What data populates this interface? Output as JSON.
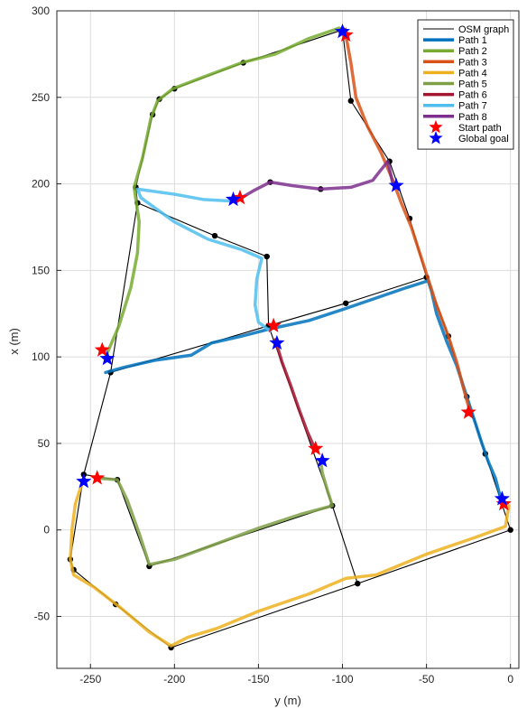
{
  "chart_data": {
    "type": "line",
    "xlabel": "y (m)",
    "ylabel": "x (m)",
    "xlim": [
      -270,
      5
    ],
    "ylim": [
      -80,
      300
    ],
    "xticks": [
      -250,
      -200,
      -150,
      -100,
      -50,
      0
    ],
    "yticks": [
      -50,
      0,
      50,
      100,
      150,
      200,
      250,
      300
    ],
    "grid": true,
    "legend_position": "top-right",
    "osm_graph": {
      "name": "OSM graph",
      "color": "#000000",
      "nodes": [
        [
          -100,
          289
        ],
        [
          -159,
          270
        ],
        [
          -200,
          255
        ],
        [
          -209,
          249
        ],
        [
          -213,
          240
        ],
        [
          -223,
          198
        ],
        [
          -222,
          189
        ],
        [
          -176,
          170
        ],
        [
          -145,
          158
        ],
        [
          -144,
          118
        ],
        [
          -143,
          201
        ],
        [
          -113,
          197
        ],
        [
          -95,
          248
        ],
        [
          -72,
          213
        ],
        [
          -60,
          180
        ],
        [
          -50,
          146
        ],
        [
          -37,
          112
        ],
        [
          -26,
          77
        ],
        [
          -15,
          44
        ],
        [
          0,
          0
        ],
        [
          -98,
          131
        ],
        [
          -238,
          91
        ],
        [
          -254,
          32
        ],
        [
          -234,
          29
        ],
        [
          -215,
          -21
        ],
        [
          -106,
          14
        ],
        [
          -91,
          -31
        ],
        [
          -262,
          -17
        ],
        [
          -260,
          -23
        ],
        [
          -235,
          -43
        ],
        [
          -202,
          -68
        ]
      ],
      "edges": [
        [
          0,
          1
        ],
        [
          1,
          2
        ],
        [
          2,
          3
        ],
        [
          3,
          4
        ],
        [
          4,
          5
        ],
        [
          5,
          6
        ],
        [
          6,
          7
        ],
        [
          7,
          8
        ],
        [
          8,
          9
        ],
        [
          0,
          12
        ],
        [
          12,
          13
        ],
        [
          13,
          14
        ],
        [
          14,
          15
        ],
        [
          15,
          16
        ],
        [
          16,
          17
        ],
        [
          17,
          18
        ],
        [
          18,
          19
        ],
        [
          6,
          21
        ],
        [
          21,
          22
        ],
        [
          22,
          23
        ],
        [
          23,
          24
        ],
        [
          24,
          25
        ],
        [
          25,
          9
        ],
        [
          9,
          20
        ],
        [
          20,
          15
        ],
        [
          21,
          9
        ],
        [
          19,
          26
        ],
        [
          26,
          25
        ],
        [
          26,
          30
        ],
        [
          30,
          29
        ],
        [
          29,
          28
        ],
        [
          28,
          27
        ],
        [
          27,
          22
        ]
      ]
    },
    "series": [
      {
        "name": "Path 1",
        "color": "#0072BD",
        "points": [
          [
            -241,
            91
          ],
          [
            -230,
            94
          ],
          [
            -212,
            98
          ],
          [
            -190,
            101
          ],
          [
            -178,
            108
          ],
          [
            -160,
            112
          ],
          [
            -144,
            116
          ],
          [
            -120,
            121
          ],
          [
            -98,
            128
          ],
          [
            -80,
            134
          ],
          [
            -62,
            140
          ],
          [
            -49,
            144
          ],
          [
            -47,
            138
          ],
          [
            -44,
            125
          ],
          [
            -38,
            109
          ],
          [
            -32,
            95
          ],
          [
            -27,
            80
          ],
          [
            -22,
            65
          ],
          [
            -17,
            50
          ],
          [
            -13,
            39
          ],
          [
            -9,
            30
          ],
          [
            -6,
            19
          ]
        ]
      },
      {
        "name": "Path 2",
        "color": "#77AC30",
        "points": [
          [
            -241,
            100
          ],
          [
            -233,
            118
          ],
          [
            -226,
            140
          ],
          [
            -222,
            160
          ],
          [
            -221,
            178
          ],
          [
            -224,
            198
          ],
          [
            -219,
            215
          ],
          [
            -214,
            238
          ],
          [
            -210,
            248
          ],
          [
            -201,
            255
          ],
          [
            -182,
            262
          ],
          [
            -160,
            270
          ],
          [
            -140,
            275
          ],
          [
            -120,
            284
          ],
          [
            -102,
            290
          ]
        ]
      },
      {
        "name": "Path 3",
        "color": "#D95319",
        "points": [
          [
            -98,
            286
          ],
          [
            -95,
            270
          ],
          [
            -92,
            250
          ],
          [
            -85,
            233
          ],
          [
            -77,
            218
          ],
          [
            -70,
            202
          ],
          [
            -65,
            189
          ],
          [
            -59,
            175
          ],
          [
            -54,
            160
          ],
          [
            -49,
            145
          ],
          [
            -44,
            130
          ],
          [
            -37,
            112
          ],
          [
            -32,
            97
          ],
          [
            -28,
            82
          ],
          [
            -24,
            68
          ]
        ]
      },
      {
        "name": "Path 4",
        "color": "#EDB120",
        "points": [
          [
            -1,
            14
          ],
          [
            -3,
            2
          ],
          [
            -20,
            -4
          ],
          [
            -50,
            -14
          ],
          [
            -80,
            -26
          ],
          [
            -98,
            -28
          ],
          [
            -120,
            -37
          ],
          [
            -150,
            -47
          ],
          [
            -175,
            -57
          ],
          [
            -192,
            -62
          ],
          [
            -202,
            -67
          ],
          [
            -215,
            -59
          ],
          [
            -232,
            -45
          ],
          [
            -248,
            -33
          ],
          [
            -260,
            -26
          ],
          [
            -262,
            -17
          ],
          [
            -261,
            0
          ],
          [
            -259,
            15
          ],
          [
            -255,
            27
          ]
        ]
      },
      {
        "name": "Path 5",
        "color": "#7E9F45",
        "points": [
          [
            -247,
            30
          ],
          [
            -234,
            29
          ],
          [
            -228,
            17
          ],
          [
            -221,
            -2
          ],
          [
            -215,
            -20
          ],
          [
            -200,
            -17
          ],
          [
            -175,
            -8
          ],
          [
            -150,
            1
          ],
          [
            -125,
            9
          ],
          [
            -106,
            14
          ],
          [
            -109,
            23
          ],
          [
            -112,
            33
          ],
          [
            -113,
            40
          ]
        ]
      },
      {
        "name": "Path 6",
        "color": "#A2142F",
        "points": [
          [
            -140,
            110
          ],
          [
            -136,
            97
          ],
          [
            -131,
            84
          ],
          [
            -126,
            70
          ],
          [
            -121,
            57
          ],
          [
            -116,
            46
          ]
        ]
      },
      {
        "name": "Path 7",
        "color": "#4DBEEE",
        "points": [
          [
            -143,
            115
          ],
          [
            -150,
            120
          ],
          [
            -152,
            130
          ],
          [
            -151,
            145
          ],
          [
            -148,
            157
          ],
          [
            -160,
            162
          ],
          [
            -180,
            168
          ],
          [
            -200,
            178
          ],
          [
            -210,
            185
          ],
          [
            -220,
            192
          ],
          [
            -222,
            197
          ],
          [
            -200,
            194
          ],
          [
            -183,
            191
          ],
          [
            -165,
            190
          ]
        ]
      },
      {
        "name": "Path 8",
        "color": "#7E2F8E",
        "points": [
          [
            -160,
            192
          ],
          [
            -153,
            196
          ],
          [
            -143,
            201
          ],
          [
            -130,
            199
          ],
          [
            -113,
            197
          ],
          [
            -95,
            198
          ],
          [
            -82,
            202
          ],
          [
            -78,
            207
          ],
          [
            -73,
            213
          ],
          [
            -70,
            200
          ]
        ]
      }
    ],
    "start_markers": {
      "name": "Start path",
      "color": "#FF0000",
      "points": [
        [
          -98,
          286
        ],
        [
          -161,
          192
        ],
        [
          -243,
          104
        ],
        [
          -141,
          118
        ],
        [
          -116,
          47
        ],
        [
          -246,
          30
        ],
        [
          -25,
          68
        ],
        [
          -4,
          15
        ]
      ]
    },
    "goal_markers": {
      "name": "Global goal",
      "color": "#0000FF",
      "points": [
        [
          -100,
          288
        ],
        [
          -165,
          191
        ],
        [
          -240,
          99
        ],
        [
          -139,
          108
        ],
        [
          -112,
          40
        ],
        [
          -254,
          28
        ],
        [
          -68,
          199
        ],
        [
          -5,
          18
        ]
      ]
    }
  }
}
